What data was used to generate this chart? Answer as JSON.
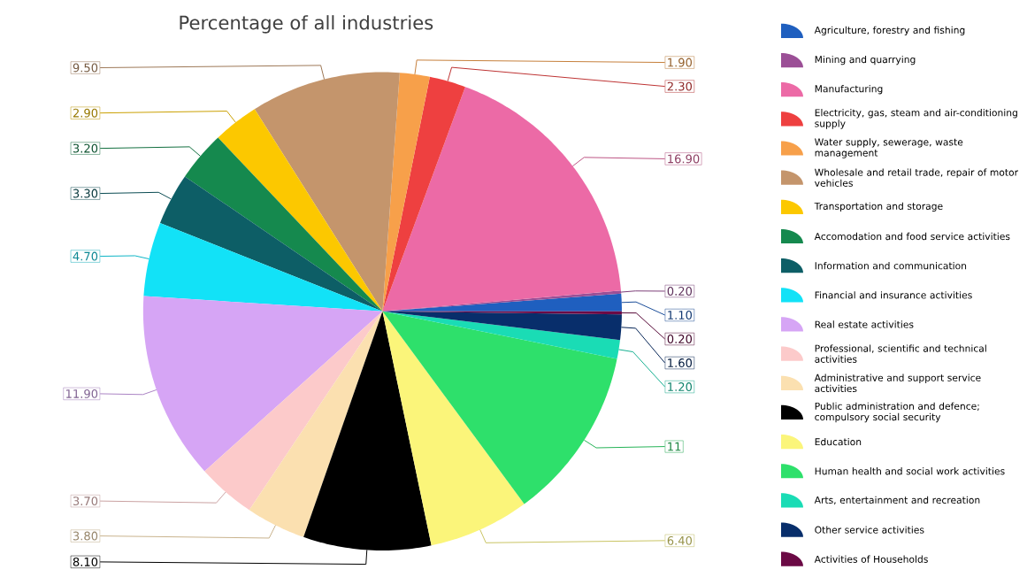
{
  "chart_data": {
    "type": "pie",
    "title": "Percentage of all industries",
    "categories": [
      "Agriculture, forestry and fishing",
      "Mining and quarrying",
      "Manufacturing",
      "Electricity, gas, steam and air-conditioning supply",
      "Water supply, sewerage, waste management",
      "Wholesale and retail trade, repair of motor vehicles",
      "Transportation and storage",
      "Accomodation and food service activities",
      "Information and communication",
      "Financial and insurance activities",
      "Real estate activities",
      "Professional, scientific and technical activities",
      "Administrative and support service activities",
      "Public administration and defence; compulsory social security",
      "Education",
      "Human health and social work activities",
      "Arts, entertainment and recreation",
      "Other service activities",
      "Activities of Households"
    ],
    "values": [
      1.1,
      0.2,
      16.9,
      2.3,
      1.9,
      9.5,
      2.9,
      3.2,
      3.3,
      4.7,
      11.9,
      3.7,
      3.8,
      8.1,
      6.4,
      11,
      1.2,
      1.6,
      0.2
    ],
    "value_labels": [
      "1.10",
      "0.20",
      "16.90",
      "2.30",
      "1.90",
      "9.50",
      "2.90",
      "3.20",
      "3.30",
      "4.70",
      "11.90",
      "3.70",
      "3.80",
      "8.10",
      "6.40",
      "11",
      "1.20",
      "1.60",
      "0.20"
    ],
    "colors": [
      "#1f5fbf",
      "#9b4f96",
      "#ec6aa6",
      "#ee4040",
      "#f7a04a",
      "#c4956c",
      "#fcc800",
      "#15894e",
      "#0d5e66",
      "#12e2f7",
      "#d6a5f5",
      "#fccaca",
      "#fbe0b0",
      "#000000",
      "#fbf57a",
      "#2ee06b",
      "#1adcb5",
      "#082e6b",
      "#6b0a45"
    ],
    "legend": "right"
  }
}
